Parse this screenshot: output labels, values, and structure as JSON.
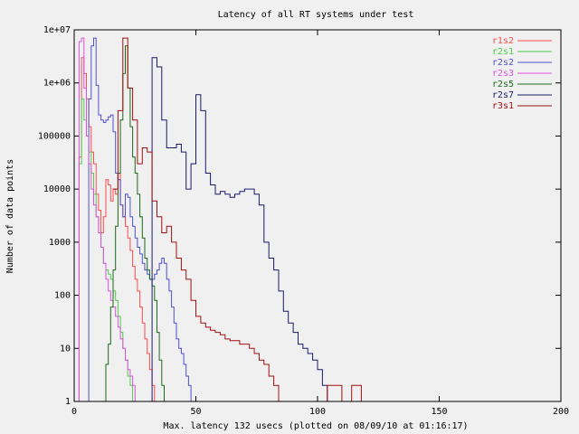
{
  "chart_data": {
    "type": "line",
    "subtype": "step histogram",
    "title": "Latency of all RT systems under test",
    "xlabel": "Max. latency 132 usecs (plotted on 08/09/10 at 01:16:17)",
    "ylabel": "Number of data points",
    "xlim": [
      0,
      200
    ],
    "ylim": [
      1,
      10000000
    ],
    "yscale": "log",
    "grid": false,
    "legend_position": "top-right",
    "x_ticks": [
      0,
      50,
      100,
      150,
      200
    ],
    "y_ticks": [
      1,
      10,
      100,
      1000,
      10000,
      100000,
      1000000,
      10000000
    ],
    "x_tick_labels": [
      "0",
      "50",
      "100",
      "150",
      "200"
    ],
    "y_tick_labels": [
      "1",
      "10",
      "100",
      "1000",
      "10000",
      "100000",
      "1e+06",
      "1e+07"
    ],
    "series": [
      {
        "name": "r1s2",
        "color": "#ff4a4a",
        "x": [
          1,
          2,
          3,
          4,
          5,
          6,
          7,
          8,
          9,
          10,
          11,
          12,
          13,
          14,
          15,
          16,
          17,
          18,
          19,
          20,
          21,
          22,
          23,
          24,
          25,
          26,
          27,
          28,
          29,
          30,
          31,
          32,
          33,
          34,
          35
        ],
        "y": [
          1,
          40000,
          3000000,
          1500000,
          500000,
          150000,
          50000,
          30000,
          8000,
          4000,
          1500,
          3000,
          15000,
          12000,
          6000,
          10000,
          8000,
          20000,
          5000,
          3000,
          2000,
          1200,
          700,
          350,
          200,
          120,
          60,
          30,
          15,
          8,
          4,
          2,
          1,
          1,
          1
        ]
      },
      {
        "name": "r2s1",
        "color": "#4ad04a",
        "x": [
          1,
          2,
          3,
          4,
          5,
          6,
          7,
          8,
          9,
          10,
          11,
          12,
          13,
          14,
          15,
          16,
          17,
          18,
          19,
          20,
          21,
          22,
          23,
          24,
          25,
          26,
          27
        ],
        "y": [
          1,
          30000,
          500000,
          200000,
          100000,
          50000,
          20000,
          8000,
          3000,
          1500,
          800,
          400,
          300,
          250,
          200,
          120,
          80,
          40,
          20,
          10,
          6,
          3,
          2,
          1,
          1,
          1,
          1
        ]
      },
      {
        "name": "r2s2",
        "color": "#5050d0",
        "x": [
          5,
          6,
          7,
          8,
          9,
          10,
          11,
          12,
          13,
          14,
          15,
          16,
          17,
          18,
          19,
          20,
          21,
          22,
          23,
          24,
          25,
          26,
          27,
          28,
          29,
          30,
          31,
          32,
          33,
          34,
          35,
          36,
          37,
          38,
          39,
          40,
          41,
          42,
          43,
          44,
          45,
          46,
          47,
          48,
          49,
          50,
          51,
          52,
          53,
          54,
          55,
          56,
          57,
          58
        ],
        "y": [
          1,
          500000,
          5000000,
          7000000,
          900000,
          250000,
          200000,
          180000,
          200000,
          230000,
          250000,
          120000,
          20000,
          15000,
          5000,
          3000,
          8000,
          7000,
          3000,
          2000,
          1200,
          800,
          600,
          400,
          300,
          250,
          200,
          200,
          250,
          300,
          400,
          500,
          400,
          200,
          120,
          60,
          30,
          15,
          10,
          8,
          5,
          3,
          2,
          1,
          1,
          1,
          1,
          1,
          1,
          1,
          1,
          1,
          1,
          1
        ]
      },
      {
        "name": "r2s3",
        "color": "#e050e0",
        "x": [
          1,
          2,
          3,
          4,
          5,
          6,
          7,
          8,
          9,
          10,
          11,
          12,
          13,
          14,
          15,
          16,
          17,
          18,
          19,
          20,
          21,
          22,
          23,
          24,
          25,
          26,
          27
        ],
        "y": [
          1,
          6000000,
          7000000,
          800000,
          100000,
          30000,
          10000,
          5000,
          3000,
          1500,
          800,
          400,
          200,
          120,
          80,
          60,
          40,
          25,
          15,
          10,
          6,
          4,
          3,
          2,
          1,
          1,
          1
        ]
      },
      {
        "name": "r2s5",
        "color": "#1a6a1a",
        "x": [
          12,
          13,
          14,
          15,
          16,
          17,
          18,
          19,
          20,
          21,
          22,
          23,
          24,
          25,
          26,
          27,
          28,
          29,
          30,
          31,
          32,
          33,
          34,
          35,
          36,
          37
        ],
        "y": [
          1,
          5,
          12,
          60,
          300,
          2000,
          20000,
          200000,
          1500000,
          5000000,
          800000,
          150000,
          40000,
          20000,
          8000,
          3000,
          1200,
          500,
          300,
          200,
          150,
          80,
          20,
          6,
          2,
          1
        ]
      },
      {
        "name": "r2s7",
        "color": "#1a1a6a",
        "x": [
          30,
          32,
          34,
          36,
          38,
          40,
          42,
          44,
          46,
          48,
          50,
          52,
          54,
          56,
          58,
          60,
          62,
          64,
          66,
          68,
          70,
          72,
          74,
          76,
          78,
          80,
          82,
          84,
          86,
          88,
          90,
          92,
          94,
          96,
          98,
          100,
          102,
          104,
          106,
          108,
          110,
          112,
          114,
          116,
          118,
          120,
          122,
          124,
          126,
          128,
          130,
          132
        ],
        "y": [
          1,
          3000000,
          2000000,
          200000,
          60000,
          60000,
          70000,
          50000,
          10000,
          30000,
          600000,
          300000,
          20000,
          12000,
          8000,
          9000,
          8000,
          7000,
          8000,
          9000,
          10000,
          10000,
          8000,
          5000,
          1000,
          500,
          300,
          120,
          50,
          30,
          20,
          12,
          10,
          8,
          6,
          4,
          2,
          1,
          1,
          1,
          1,
          1,
          1,
          1,
          1,
          1,
          1,
          1,
          1,
          1,
          1,
          1
        ]
      },
      {
        "name": "r3s1",
        "color": "#a01010",
        "x": [
          16,
          18,
          20,
          22,
          24,
          26,
          28,
          30,
          32,
          34,
          36,
          38,
          40,
          42,
          44,
          46,
          48,
          50,
          52,
          54,
          56,
          58,
          60,
          62,
          64,
          66,
          68,
          70,
          72,
          74,
          76,
          78,
          80,
          82,
          84,
          86,
          88,
          90,
          92,
          94,
          96,
          98,
          100,
          102,
          104,
          106,
          108,
          110,
          112,
          114,
          116,
          118,
          120,
          122,
          124,
          126,
          128,
          130,
          132
        ],
        "y": [
          10000,
          300000,
          7000000,
          800000,
          200000,
          30000,
          60000,
          50000,
          6000,
          3000,
          1500,
          2000,
          1000,
          500,
          300,
          200,
          80,
          40,
          30,
          25,
          22,
          20,
          18,
          15,
          14,
          14,
          12,
          12,
          10,
          8,
          6,
          5,
          3,
          2,
          1,
          1,
          1,
          1,
          1,
          1,
          1,
          1,
          1,
          1,
          2,
          2,
          2,
          1,
          1,
          2,
          2,
          1,
          1,
          1,
          1,
          1,
          1,
          1,
          1
        ]
      }
    ]
  }
}
